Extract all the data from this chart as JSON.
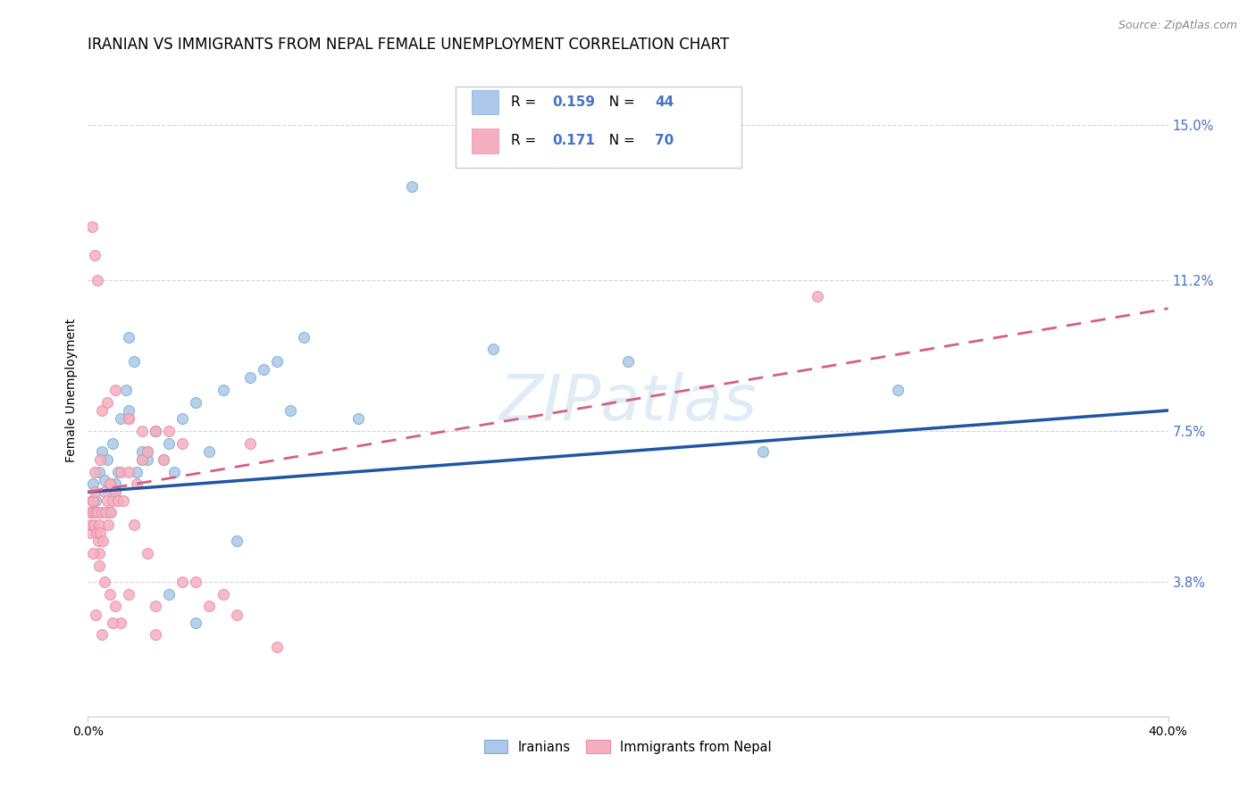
{
  "title": "IRANIAN VS IMMIGRANTS FROM NEPAL FEMALE UNEMPLOYMENT CORRELATION CHART",
  "source": "Source: ZipAtlas.com",
  "ylabel": "Female Unemployment",
  "ytick_values": [
    3.8,
    7.5,
    11.2,
    15.0
  ],
  "xmin": 0.0,
  "xmax": 40.0,
  "ymin": 0.5,
  "ymax": 16.5,
  "watermark": "ZIPatlas",
  "legend_R_iran": "0.159",
  "legend_N_iran": "44",
  "legend_R_nepal": "0.171",
  "legend_N_nepal": "70",
  "iranian_x": [
    0.2,
    0.3,
    0.4,
    0.5,
    0.6,
    0.7,
    0.8,
    0.9,
    1.0,
    1.1,
    1.2,
    1.4,
    1.5,
    1.7,
    2.0,
    2.2,
    2.5,
    2.8,
    3.0,
    3.5,
    4.0,
    4.5,
    5.0,
    6.0,
    7.0,
    8.0,
    10.0,
    12.0,
    15.0,
    20.0,
    1.0,
    1.5,
    2.0,
    2.5,
    3.0,
    4.0,
    5.5,
    7.5,
    25.0,
    30.0,
    1.8,
    2.2,
    3.2,
    6.5
  ],
  "iranian_y": [
    6.2,
    5.8,
    6.5,
    7.0,
    6.3,
    6.8,
    5.5,
    7.2,
    6.0,
    6.5,
    7.8,
    8.5,
    9.8,
    9.2,
    7.0,
    6.8,
    7.5,
    6.8,
    7.2,
    7.8,
    8.2,
    7.0,
    8.5,
    8.8,
    9.2,
    9.8,
    7.8,
    13.5,
    9.5,
    9.2,
    6.2,
    8.0,
    6.8,
    7.5,
    3.5,
    2.8,
    4.8,
    8.0,
    7.0,
    8.5,
    6.5,
    7.0,
    6.5,
    9.0
  ],
  "nepal_x": [
    0.05,
    0.1,
    0.12,
    0.15,
    0.18,
    0.2,
    0.22,
    0.25,
    0.3,
    0.32,
    0.35,
    0.38,
    0.4,
    0.42,
    0.45,
    0.5,
    0.55,
    0.6,
    0.65,
    0.7,
    0.75,
    0.8,
    0.85,
    0.9,
    1.0,
    1.1,
    1.2,
    1.3,
    1.5,
    1.7,
    2.0,
    2.2,
    2.5,
    2.8,
    3.0,
    3.5,
    4.0,
    5.0,
    6.0,
    7.0,
    0.15,
    0.25,
    0.35,
    0.5,
    0.7,
    1.0,
    1.5,
    2.0,
    2.5,
    0.2,
    0.4,
    0.6,
    0.8,
    1.0,
    1.2,
    1.5,
    1.8,
    2.2,
    0.3,
    0.5,
    0.9,
    1.5,
    2.5,
    3.5,
    4.5,
    5.5,
    0.25,
    0.45,
    0.8,
    27.0
  ],
  "nepal_y": [
    5.5,
    5.0,
    5.2,
    5.8,
    5.5,
    5.8,
    5.2,
    6.0,
    5.5,
    5.0,
    5.5,
    4.8,
    5.2,
    4.5,
    5.0,
    5.5,
    4.8,
    6.0,
    5.5,
    5.8,
    5.2,
    6.2,
    5.5,
    5.8,
    6.0,
    5.8,
    6.5,
    5.8,
    6.5,
    5.2,
    6.8,
    7.0,
    7.5,
    6.8,
    7.5,
    7.2,
    3.8,
    3.5,
    7.2,
    2.2,
    12.5,
    11.8,
    11.2,
    8.0,
    8.2,
    8.5,
    7.8,
    7.5,
    3.2,
    4.5,
    4.2,
    3.8,
    3.5,
    3.2,
    2.8,
    7.8,
    6.2,
    4.5,
    3.0,
    2.5,
    2.8,
    3.5,
    2.5,
    3.8,
    3.2,
    3.0,
    6.5,
    6.8,
    6.2,
    10.8
  ],
  "iranian_color": "#adc8e8",
  "nepal_color": "#f4b0c0",
  "iranian_edge_color": "#7aafd4",
  "nepal_edge_color": "#e890a8",
  "iranian_line_color": "#2055a4",
  "nepal_line_color": "#d46080",
  "right_label_color": "#4472c4",
  "legend_label_color": "#4472c4",
  "grid_color": "#d5d5d5",
  "bg_color": "#ffffff"
}
